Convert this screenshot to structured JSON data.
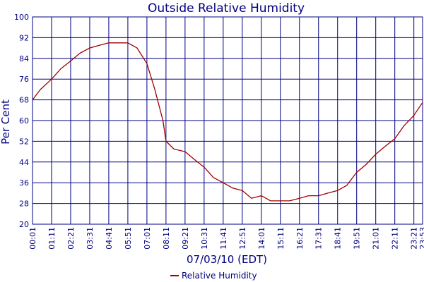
{
  "chart_data": {
    "type": "line",
    "title": "Outside Relative Humidity",
    "xlabel": "07/03/10 (EDT)",
    "ylabel": "Per Cent",
    "ylim": [
      20,
      100
    ],
    "yticks": [
      20,
      28,
      36,
      44,
      52,
      60,
      68,
      76,
      84,
      92,
      100
    ],
    "xticks": [
      "00:01",
      "01:11",
      "02:21",
      "03:31",
      "04:41",
      "05:51",
      "07:01",
      "08:11",
      "09:21",
      "10:31",
      "11:41",
      "12:51",
      "14:01",
      "15:11",
      "16:21",
      "17:31",
      "18:41",
      "19:51",
      "21:01",
      "22:11",
      "23:21",
      "23:53"
    ],
    "grid": true,
    "legend_position": "bottom-center",
    "series": [
      {
        "name": "Relative Humidity",
        "color": "#a00000",
        "x": [
          "00:01",
          "00:30",
          "01:11",
          "01:45",
          "02:21",
          "02:55",
          "03:31",
          "04:05",
          "04:41",
          "05:15",
          "05:51",
          "06:25",
          "07:01",
          "07:30",
          "08:00",
          "08:11",
          "08:40",
          "09:21",
          "09:55",
          "10:31",
          "11:05",
          "11:41",
          "12:15",
          "12:51",
          "13:25",
          "14:01",
          "14:35",
          "15:11",
          "15:45",
          "16:21",
          "16:55",
          "17:31",
          "18:05",
          "18:41",
          "19:15",
          "19:51",
          "20:25",
          "21:01",
          "21:35",
          "22:11",
          "22:45",
          "23:21",
          "23:53"
        ],
        "values": [
          68,
          72,
          76,
          80,
          83,
          86,
          88,
          89,
          90,
          90,
          90,
          88,
          82,
          72,
          60,
          52,
          49,
          48,
          45,
          42,
          38,
          36,
          34,
          33,
          30,
          31,
          29,
          29,
          29,
          30,
          31,
          31,
          32,
          33,
          35,
          40,
          43,
          47,
          50,
          53,
          58,
          62,
          67
        ]
      }
    ]
  }
}
